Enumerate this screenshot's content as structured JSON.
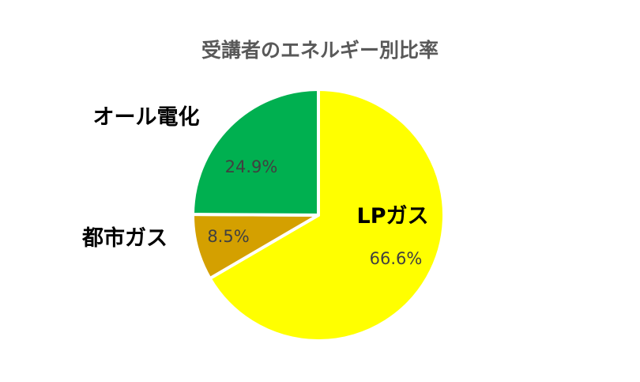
{
  "chart_data": {
    "type": "pie",
    "title": "受講者のエネルギー別比率",
    "categories": [
      "LPガス",
      "都市ガス",
      "オール電化"
    ],
    "values": [
      66.6,
      8.5,
      24.9
    ],
    "value_labels": [
      "66.6%",
      "8.5%",
      "24.9%"
    ],
    "colors": [
      "#FFFF00",
      "#D4A000",
      "#00B050"
    ],
    "start": "12 o'clock",
    "direction": "clockwise",
    "legend": "none"
  }
}
